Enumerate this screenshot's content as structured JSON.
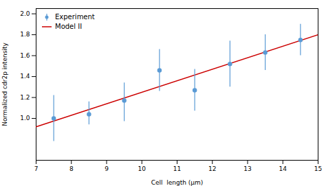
{
  "chart_data": {
    "type": "scatter",
    "xlabel": "Cell  length (μm)",
    "ylabel": "Normalized cdr2p intensity",
    "xlim": [
      7.0,
      15.0
    ],
    "ylim": [
      0.6,
      2.05
    ],
    "xticks": [
      7,
      8,
      9,
      10,
      11,
      12,
      13,
      14,
      15
    ],
    "yticks": [
      {
        "value": 1.0,
        "label": "1.0"
      },
      1.2,
      1.4,
      1.6,
      1.8,
      {
        "value": 2.0,
        "label": "2.0"
      }
    ],
    "grid": false,
    "legend": "upper left",
    "series": [
      {
        "name": "Experiment",
        "type": "scatter",
        "color": "#5b9bd5",
        "marker": "o",
        "x": [
          7.5,
          8.5,
          9.5,
          10.5,
          11.5,
          12.5,
          13.5,
          14.5
        ],
        "values": [
          1.0,
          1.04,
          1.17,
          1.46,
          1.27,
          1.52,
          1.63,
          1.75
        ],
        "error_low": [
          0.22,
          0.1,
          0.2,
          0.2,
          0.2,
          0.22,
          0.17,
          0.15
        ],
        "error_high": [
          0.22,
          0.12,
          0.17,
          0.2,
          0.2,
          0.22,
          0.17,
          0.15
        ]
      },
      {
        "name": "Model II",
        "type": "line",
        "color": "#cc0000",
        "line_style": "solid",
        "x": [
          7.0,
          15.0
        ],
        "values": [
          0.92,
          1.8
        ]
      }
    ]
  }
}
